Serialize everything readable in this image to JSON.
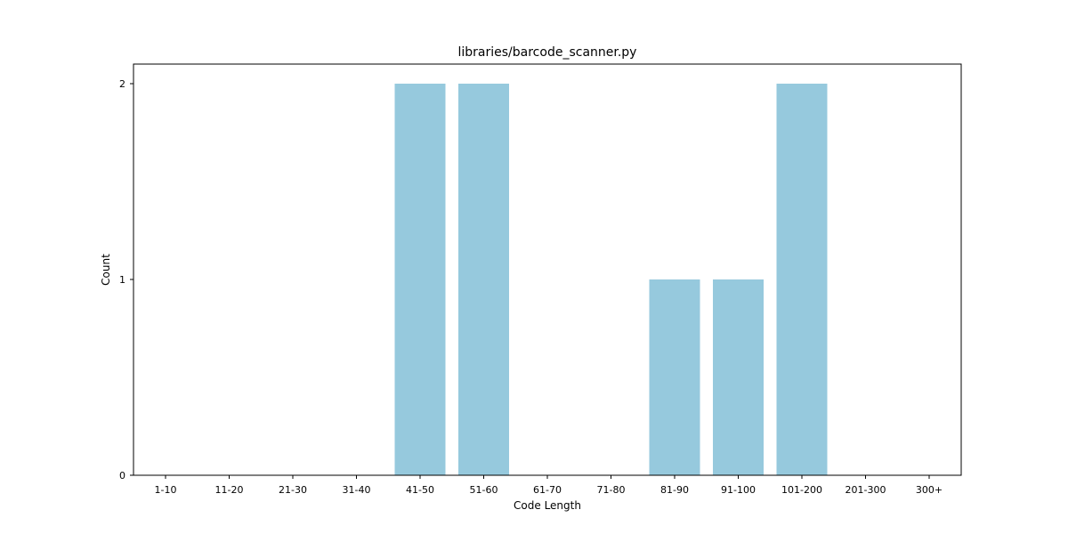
{
  "chart_data": {
    "type": "bar",
    "title": "libraries/barcode_scanner.py",
    "xlabel": "Code Length",
    "ylabel": "Count",
    "categories": [
      "1-10",
      "11-20",
      "21-30",
      "31-40",
      "41-50",
      "51-60",
      "61-70",
      "71-80",
      "81-90",
      "91-100",
      "101-200",
      "201-300",
      "300+"
    ],
    "values": [
      0,
      0,
      0,
      0,
      2,
      2,
      0,
      0,
      1,
      1,
      2,
      0,
      0
    ],
    "yticks": [
      0,
      1,
      2
    ],
    "ylim": [
      0,
      2.1
    ],
    "grid": false,
    "bar_color": "#96c9dd"
  }
}
